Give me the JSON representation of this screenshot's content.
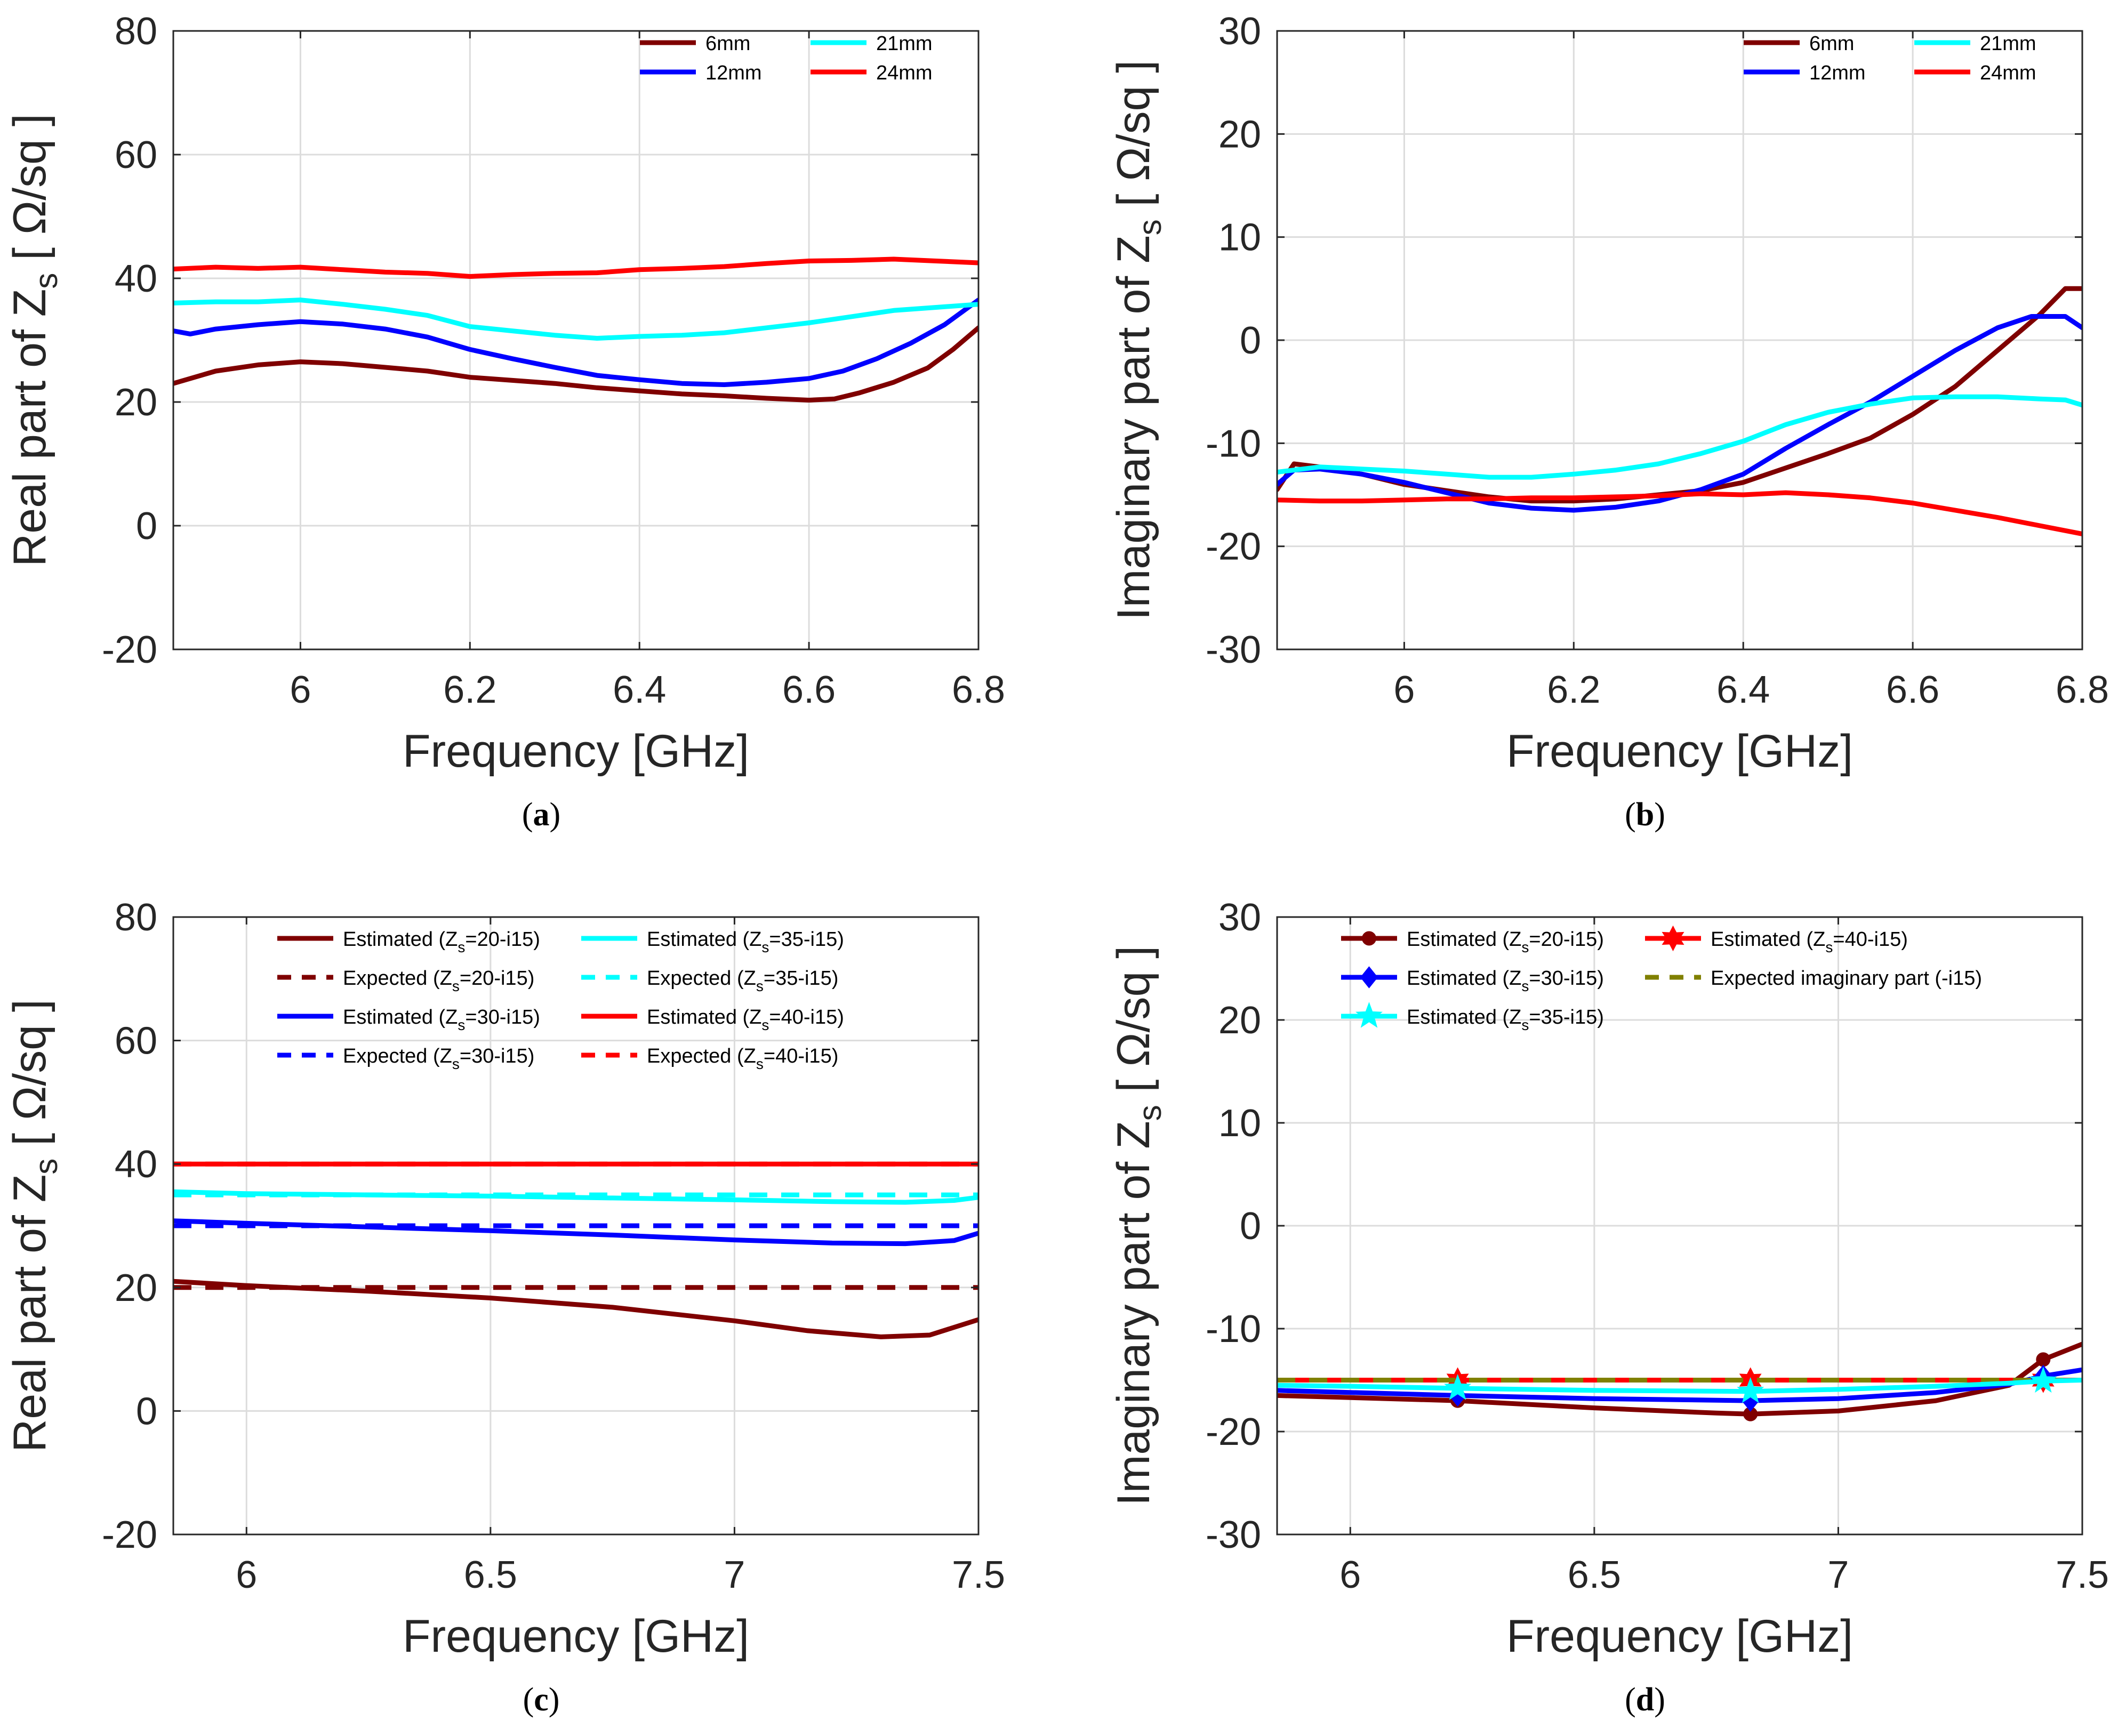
{
  "chart_data": [
    {
      "id": "a",
      "type": "line",
      "caption": "a",
      "xlabel": "Frequency [GHz]",
      "ylabel": "Real part of Z",
      "ylabel_sub": "s",
      "ylabel_unit": " [ Ω/sq ]",
      "xlim": [
        5.85,
        6.8
      ],
      "ylim": [
        -20,
        80
      ],
      "xticks": [
        6,
        6.2,
        6.4,
        6.6,
        6.8
      ],
      "xtick_labels": [
        "6",
        "6.2",
        "6.4",
        "6.6",
        "6.8"
      ],
      "yticks": [
        -20,
        0,
        20,
        40,
        60,
        80
      ],
      "ytick_labels": [
        "-20",
        "0",
        "20",
        "40",
        "60",
        "80"
      ],
      "grid": true,
      "legend_position": "top-right",
      "legend_columns": 2,
      "series": [
        {
          "name": "6mm",
          "legend": [
            "6mm"
          ],
          "color": "#7f0000",
          "dash": "solid",
          "x": [
            5.85,
            5.9,
            5.95,
            6.0,
            6.05,
            6.1,
            6.15,
            6.2,
            6.25,
            6.3,
            6.35,
            6.4,
            6.45,
            6.5,
            6.55,
            6.6,
            6.63,
            6.66,
            6.7,
            6.74,
            6.77,
            6.8
          ],
          "y": [
            23,
            25,
            26,
            26.5,
            26.2,
            25.6,
            25,
            24,
            23.5,
            23,
            22.3,
            21.8,
            21.3,
            21,
            20.6,
            20.3,
            20.5,
            21.5,
            23.2,
            25.5,
            28.5,
            32
          ]
        },
        {
          "name": "12mm",
          "legend": [
            "12mm"
          ],
          "color": "#0000ff",
          "dash": "solid",
          "x": [
            5.85,
            5.87,
            5.9,
            5.95,
            6.0,
            6.05,
            6.1,
            6.15,
            6.2,
            6.25,
            6.3,
            6.35,
            6.4,
            6.45,
            6.5,
            6.55,
            6.6,
            6.64,
            6.68,
            6.72,
            6.76,
            6.8
          ],
          "y": [
            31.5,
            31,
            31.8,
            32.5,
            33,
            32.6,
            31.8,
            30.5,
            28.5,
            27,
            25.6,
            24.3,
            23.6,
            23,
            22.8,
            23.2,
            23.8,
            25,
            27,
            29.5,
            32.5,
            36.5
          ]
        },
        {
          "name": "21mm",
          "legend": [
            "21mm"
          ],
          "color": "#00ffff",
          "dash": "solid",
          "x": [
            5.85,
            5.9,
            5.95,
            6.0,
            6.05,
            6.1,
            6.15,
            6.2,
            6.25,
            6.3,
            6.35,
            6.4,
            6.45,
            6.5,
            6.55,
            6.6,
            6.65,
            6.7,
            6.75,
            6.8
          ],
          "y": [
            36,
            36.2,
            36.2,
            36.5,
            35.8,
            35,
            34,
            32.2,
            31.5,
            30.8,
            30.3,
            30.6,
            30.8,
            31.2,
            32,
            32.8,
            33.8,
            34.8,
            35.3,
            35.8
          ]
        },
        {
          "name": "24mm",
          "legend": [
            "24mm"
          ],
          "color": "#ff0000",
          "dash": "solid",
          "x": [
            5.85,
            5.9,
            5.95,
            6.0,
            6.05,
            6.1,
            6.15,
            6.2,
            6.25,
            6.3,
            6.35,
            6.4,
            6.45,
            6.5,
            6.55,
            6.6,
            6.65,
            6.7,
            6.75,
            6.8
          ],
          "y": [
            41.5,
            41.8,
            41.6,
            41.8,
            41.4,
            41,
            40.8,
            40.3,
            40.6,
            40.8,
            40.9,
            41.4,
            41.6,
            41.9,
            42.4,
            42.8,
            42.9,
            43.1,
            42.8,
            42.5
          ]
        }
      ]
    },
    {
      "id": "b",
      "type": "line",
      "caption": "b",
      "xlabel": "Frequency [GHz]",
      "ylabel": "Imaginary part of Z",
      "ylabel_sub": "s",
      "ylabel_unit": " [ Ω/sq ]",
      "xlim": [
        5.85,
        6.8
      ],
      "ylim": [
        -30,
        30
      ],
      "xticks": [
        6,
        6.2,
        6.4,
        6.6,
        6.8
      ],
      "xtick_labels": [
        "6",
        "6.2",
        "6.4",
        "6.6",
        "6.8"
      ],
      "yticks": [
        -30,
        -20,
        -10,
        0,
        10,
        20,
        30
      ],
      "ytick_labels": [
        "-30",
        "-20",
        "-10",
        "0",
        "10",
        "20",
        "30"
      ],
      "grid": true,
      "legend_position": "top-right",
      "legend_columns": 2,
      "series": [
        {
          "name": "6mm",
          "legend": [
            "6mm"
          ],
          "color": "#7f0000",
          "dash": "solid",
          "x": [
            5.85,
            5.87,
            5.9,
            5.95,
            6.0,
            6.05,
            6.1,
            6.15,
            6.2,
            6.25,
            6.3,
            6.35,
            6.4,
            6.45,
            6.5,
            6.55,
            6.6,
            6.65,
            6.7,
            6.75,
            6.78,
            6.8
          ],
          "y": [
            -14.5,
            -12,
            -12.3,
            -13,
            -14,
            -14.6,
            -15.2,
            -15.6,
            -15.6,
            -15.4,
            -15,
            -14.6,
            -13.8,
            -12.4,
            -11,
            -9.5,
            -7.2,
            -4.5,
            -1,
            2.5,
            5,
            5
          ]
        },
        {
          "name": "12mm",
          "legend": [
            "12mm"
          ],
          "color": "#0000ff",
          "dash": "solid",
          "x": [
            5.85,
            5.87,
            5.9,
            5.95,
            6.0,
            6.05,
            6.1,
            6.15,
            6.2,
            6.25,
            6.3,
            6.35,
            6.4,
            6.45,
            6.5,
            6.55,
            6.6,
            6.65,
            6.7,
            6.74,
            6.78,
            6.8
          ],
          "y": [
            -14,
            -12.6,
            -12.5,
            -13,
            -13.8,
            -14.8,
            -15.8,
            -16.3,
            -16.5,
            -16.2,
            -15.6,
            -14.5,
            -13,
            -10.5,
            -8.2,
            -6,
            -3.5,
            -1,
            1.2,
            2.3,
            2.3,
            1.2
          ]
        },
        {
          "name": "21mm",
          "legend": [
            "21mm"
          ],
          "color": "#00ffff",
          "dash": "solid",
          "x": [
            5.85,
            5.9,
            5.95,
            6.0,
            6.05,
            6.1,
            6.15,
            6.2,
            6.25,
            6.3,
            6.35,
            6.4,
            6.45,
            6.5,
            6.55,
            6.6,
            6.65,
            6.7,
            6.75,
            6.78,
            6.8
          ],
          "y": [
            -12.8,
            -12.3,
            -12.5,
            -12.7,
            -13,
            -13.3,
            -13.3,
            -13,
            -12.6,
            -12,
            -11,
            -9.8,
            -8.2,
            -7,
            -6.2,
            -5.6,
            -5.5,
            -5.5,
            -5.7,
            -5.8,
            -6.3
          ]
        },
        {
          "name": "24mm",
          "legend": [
            "24mm"
          ],
          "color": "#ff0000",
          "dash": "solid",
          "x": [
            5.85,
            5.9,
            5.95,
            6.0,
            6.05,
            6.1,
            6.15,
            6.2,
            6.25,
            6.3,
            6.35,
            6.4,
            6.45,
            6.5,
            6.55,
            6.6,
            6.65,
            6.7,
            6.75,
            6.8
          ],
          "y": [
            -15.5,
            -15.6,
            -15.6,
            -15.5,
            -15.4,
            -15.4,
            -15.3,
            -15.3,
            -15.2,
            -15.1,
            -14.9,
            -15,
            -14.8,
            -15,
            -15.3,
            -15.8,
            -16.5,
            -17.2,
            -18,
            -18.8
          ]
        }
      ]
    },
    {
      "id": "c",
      "type": "line",
      "caption": "c",
      "xlabel": "Frequency [GHz]",
      "ylabel": "Real part of Z",
      "ylabel_sub": "s",
      "ylabel_unit": " [ Ω/sq ]",
      "xlim": [
        5.85,
        7.5
      ],
      "ylim": [
        -20,
        80
      ],
      "xticks": [
        6,
        6.5,
        7,
        7.5
      ],
      "xtick_labels": [
        "6",
        "6.5",
        "7",
        "7.5"
      ],
      "yticks": [
        -20,
        0,
        20,
        40,
        60,
        80
      ],
      "ytick_labels": [
        "-20",
        "0",
        "20",
        "40",
        "60",
        "80"
      ],
      "grid": true,
      "legend_position": "top",
      "legend_columns": 2,
      "series": [
        {
          "name": "Estimated (Zs=20-i15)",
          "legend": [
            "Estimated (Z",
            "s",
            "=20-i15)"
          ],
          "color": "#7f0000",
          "dash": "solid",
          "x": [
            5.85,
            6.0,
            6.25,
            6.5,
            6.75,
            7.0,
            7.15,
            7.3,
            7.4,
            7.5
          ],
          "y": [
            21,
            20.3,
            19.4,
            18.3,
            16.8,
            14.6,
            13,
            12,
            12.3,
            14.8
          ]
        },
        {
          "name": "Expected (Zs=20-i15)",
          "legend": [
            "Expected (Z",
            "s",
            "=20-i15)"
          ],
          "color": "#7f0000",
          "dash": "dashed",
          "x": [
            5.85,
            7.5
          ],
          "y": [
            20,
            20
          ]
        },
        {
          "name": "Estimated (Zs=30-i15)",
          "legend": [
            "Estimated (Z",
            "s",
            "=30-i15)"
          ],
          "color": "#0000ff",
          "dash": "solid",
          "x": [
            5.85,
            6.0,
            6.25,
            6.5,
            6.75,
            7.0,
            7.2,
            7.35,
            7.45,
            7.5
          ],
          "y": [
            30.8,
            30.4,
            29.8,
            29.2,
            28.5,
            27.7,
            27.2,
            27.1,
            27.6,
            28.8
          ]
        },
        {
          "name": "Expected (Zs=30-i15)",
          "legend": [
            "Expected (Z",
            "s",
            "=30-i15)"
          ],
          "color": "#0000ff",
          "dash": "dashed",
          "x": [
            5.85,
            7.5
          ],
          "y": [
            30,
            30
          ]
        },
        {
          "name": "Estimated (Zs=35-i15)",
          "legend": [
            "Estimated (Z",
            "s",
            "=35-i15)"
          ],
          "color": "#00ffff",
          "dash": "solid",
          "x": [
            5.85,
            6.0,
            6.25,
            6.5,
            6.75,
            7.0,
            7.2,
            7.35,
            7.45,
            7.5
          ],
          "y": [
            35.5,
            35.2,
            35,
            34.8,
            34.5,
            34.2,
            33.9,
            33.8,
            34.1,
            34.6
          ]
        },
        {
          "name": "Expected (Zs=35-i15)",
          "legend": [
            "Expected (Z",
            "s",
            "=35-i15)"
          ],
          "color": "#00ffff",
          "dash": "dashed",
          "x": [
            5.85,
            7.5
          ],
          "y": [
            35,
            35
          ]
        },
        {
          "name": "Estimated (Zs=40-i15)",
          "legend": [
            "Estimated (Z",
            "s",
            "=40-i15)"
          ],
          "color": "#ff0000",
          "dash": "solid",
          "x": [
            5.85,
            7.5
          ],
          "y": [
            40,
            40
          ]
        },
        {
          "name": "Expected (Zs=40-i15)",
          "legend": [
            "Expected (Z",
            "s",
            "=40-i15)"
          ],
          "color": "#ff0000",
          "dash": "dashed",
          "x": [
            5.85,
            7.5
          ],
          "y": [
            40,
            40
          ]
        }
      ]
    },
    {
      "id": "d",
      "type": "line",
      "caption": "d",
      "xlabel": "Frequency [GHz]",
      "ylabel": "Imaginary part of Z",
      "ylabel_sub": "s",
      "ylabel_unit": " [ Ω/sq ]",
      "xlim": [
        5.85,
        7.5
      ],
      "ylim": [
        -30,
        30
      ],
      "xticks": [
        6,
        6.5,
        7,
        7.5
      ],
      "xtick_labels": [
        "6",
        "6.5",
        "7",
        "7.5"
      ],
      "yticks": [
        -30,
        -20,
        -10,
        0,
        10,
        20,
        30
      ],
      "ytick_labels": [
        "-30",
        "-20",
        "-10",
        "0",
        "10",
        "20",
        "30"
      ],
      "grid": true,
      "legend_position": "top-left",
      "legend_columns": 2,
      "series": [
        {
          "name": "Estimated (Zs=20-i15)",
          "legend": [
            "Estimated (Z",
            "s",
            "=20-i15)"
          ],
          "color": "#7f0000",
          "dash": "solid",
          "marker": "dot",
          "x": [
            5.85,
            6.0,
            6.22,
            6.5,
            6.75,
            6.82,
            7.0,
            7.2,
            7.35,
            7.42,
            7.5
          ],
          "y": [
            -16.5,
            -16.7,
            -17,
            -17.7,
            -18.2,
            -18.3,
            -18,
            -17,
            -15.5,
            -13,
            -11.5
          ],
          "marker_x": [
            6.22,
            6.82,
            7.42
          ],
          "marker_y": [
            -17,
            -18.3,
            -13
          ]
        },
        {
          "name": "Estimated (Zs=40-i15)",
          "legend": [
            "Estimated (Z",
            "s",
            "=40-i15)"
          ],
          "color": "#ff0000",
          "dash": "solid",
          "marker": "hexagram",
          "x": [
            5.85,
            7.5
          ],
          "y": [
            -15,
            -15
          ],
          "marker_x": [
            6.22,
            6.82,
            7.42
          ],
          "marker_y": [
            -15,
            -15,
            -15
          ]
        },
        {
          "name": "Estimated (Zs=30-i15)",
          "legend": [
            "Estimated (Z",
            "s",
            "=30-i15)"
          ],
          "color": "#0000ff",
          "dash": "solid",
          "marker": "diamond",
          "x": [
            5.85,
            6.0,
            6.22,
            6.5,
            6.82,
            7.0,
            7.2,
            7.35,
            7.42,
            7.5
          ],
          "y": [
            -16,
            -16.2,
            -16.5,
            -16.8,
            -17,
            -16.8,
            -16.2,
            -15.4,
            -14.6,
            -14
          ],
          "marker_x": [
            6.22,
            6.82,
            7.42
          ],
          "marker_y": [
            -16.5,
            -17,
            -14.6
          ]
        },
        {
          "name": "Expected imaginary part (-i15)",
          "legend": [
            "Expected imaginary part (-i15)"
          ],
          "color": "#808000",
          "dash": "dashed",
          "x": [
            5.85,
            7.5
          ],
          "y": [
            -15,
            -15
          ]
        },
        {
          "name": "Estimated (Zs=35-i15)",
          "legend": [
            "Estimated (Z",
            "s",
            "=35-i15)"
          ],
          "color": "#00ffff",
          "dash": "solid",
          "marker": "pentagram",
          "x": [
            5.85,
            6.0,
            6.22,
            6.5,
            6.82,
            7.0,
            7.2,
            7.35,
            7.42,
            7.5
          ],
          "y": [
            -15.5,
            -15.6,
            -15.8,
            -16,
            -16.1,
            -15.9,
            -15.6,
            -15.3,
            -15.1,
            -15
          ],
          "marker_x": [
            6.22,
            6.82,
            7.42
          ],
          "marker_y": [
            -15.8,
            -16.1,
            -15.1
          ]
        }
      ]
    }
  ]
}
